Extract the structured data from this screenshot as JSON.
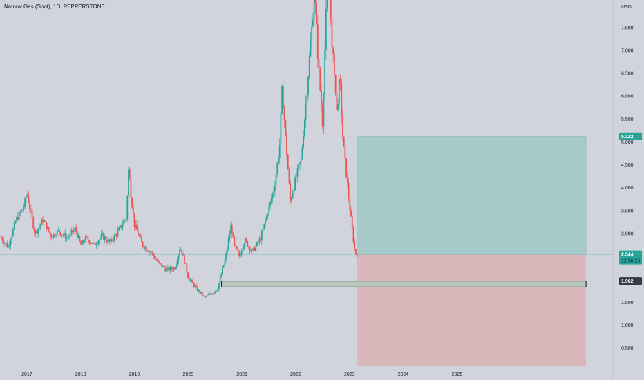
{
  "header": {
    "symbol_title": "Natural Gas (Spot), 1D, PEPPERSTONE"
  },
  "colors": {
    "background": "#d1d4dc",
    "up_candle": "#26a69a",
    "down_candle": "#ef5350",
    "profit_zone": "#a6c9c9",
    "loss_zone": "#d9b8bc",
    "support_zone": "#b7c7bd",
    "price_line": "#26a69a",
    "label_dark": "#363a45"
  },
  "chart_data": {
    "type": "candlestick",
    "title": "Natural Gas (Spot), 1D, PEPPERSTONE",
    "y_axis": {
      "unit_label": "USD",
      "ticks": [
        "7.500",
        "7.000",
        "6.500",
        "6.000",
        "5.500",
        "5.000",
        "4.500",
        "4.000",
        "3.500",
        "3.000",
        "2.500",
        "1.500",
        "1.000",
        "0.500"
      ],
      "tick_values": [
        7.5,
        7.0,
        6.5,
        6.0,
        5.5,
        5.0,
        4.5,
        4.0,
        3.5,
        3.0,
        2.5,
        1.5,
        1.0,
        0.5
      ],
      "range": [
        0.1,
        8.1
      ]
    },
    "x_axis": {
      "ticks": [
        "2017",
        "2018",
        "2019",
        "2020",
        "2021",
        "2022",
        "2023",
        "2024",
        "2025"
      ],
      "tick_years": [
        2017,
        2018,
        2019,
        2020,
        2021,
        2022,
        2023,
        2024,
        2025
      ],
      "range": [
        2016.5,
        2027.9
      ]
    },
    "price_path": [
      [
        2016.5,
        2.95
      ],
      [
        2016.65,
        2.7
      ],
      [
        2016.8,
        3.3
      ],
      [
        2016.95,
        3.6
      ],
      [
        2017.0,
        3.9
      ],
      [
        2017.15,
        3.0
      ],
      [
        2017.3,
        3.3
      ],
      [
        2017.45,
        2.95
      ],
      [
        2017.6,
        3.05
      ],
      [
        2017.75,
        2.9
      ],
      [
        2017.9,
        3.1
      ],
      [
        2018.0,
        2.75
      ],
      [
        2018.1,
        2.9
      ],
      [
        2018.25,
        2.75
      ],
      [
        2018.4,
        2.95
      ],
      [
        2018.55,
        2.8
      ],
      [
        2018.7,
        3.05
      ],
      [
        2018.85,
        3.35
      ],
      [
        2018.9,
        4.6
      ],
      [
        2018.93,
        3.9
      ],
      [
        2019.0,
        3.2
      ],
      [
        2019.15,
        2.75
      ],
      [
        2019.3,
        2.6
      ],
      [
        2019.45,
        2.35
      ],
      [
        2019.6,
        2.2
      ],
      [
        2019.75,
        2.25
      ],
      [
        2019.85,
        2.7
      ],
      [
        2019.92,
        2.45
      ],
      [
        2020.0,
        2.05
      ],
      [
        2020.15,
        1.8
      ],
      [
        2020.3,
        1.6
      ],
      [
        2020.45,
        1.7
      ],
      [
        2020.55,
        1.8
      ],
      [
        2020.7,
        2.5
      ],
      [
        2020.8,
        3.2
      ],
      [
        2020.85,
        2.75
      ],
      [
        2020.95,
        2.5
      ],
      [
        2021.05,
        2.85
      ],
      [
        2021.2,
        2.6
      ],
      [
        2021.35,
        2.9
      ],
      [
        2021.5,
        3.55
      ],
      [
        2021.6,
        4.0
      ],
      [
        2021.7,
        4.9
      ],
      [
        2021.75,
        6.2
      ],
      [
        2021.8,
        5.3
      ],
      [
        2021.9,
        3.7
      ],
      [
        2022.0,
        4.2
      ],
      [
        2022.1,
        4.6
      ],
      [
        2022.2,
        6.0
      ],
      [
        2022.3,
        7.5
      ],
      [
        2022.35,
        8.3
      ],
      [
        2022.42,
        6.7
      ],
      [
        2022.5,
        5.4
      ],
      [
        2022.55,
        7.3
      ],
      [
        2022.62,
        9.5
      ],
      [
        2022.67,
        7.0
      ],
      [
        2022.72,
        6.6
      ],
      [
        2022.76,
        5.6
      ],
      [
        2022.82,
        6.4
      ],
      [
        2022.88,
        5.0
      ],
      [
        2022.95,
        4.2
      ],
      [
        2023.02,
        3.4
      ],
      [
        2023.1,
        2.6
      ],
      [
        2023.14,
        2.54
      ]
    ],
    "last_price": {
      "value": 2.544,
      "label": "2.544",
      "countdown": "12:56:26"
    },
    "position": {
      "entry_year": 2023.14,
      "end_year": 2027.4,
      "target_price": 5.122,
      "target_label": "5.122",
      "entry_price": 2.544,
      "stop_price": 0.1
    },
    "support_zone": {
      "start_year": 2020.62,
      "end_year": 2027.4,
      "top": 1.962,
      "bottom": 1.83,
      "label": "1.962"
    }
  }
}
